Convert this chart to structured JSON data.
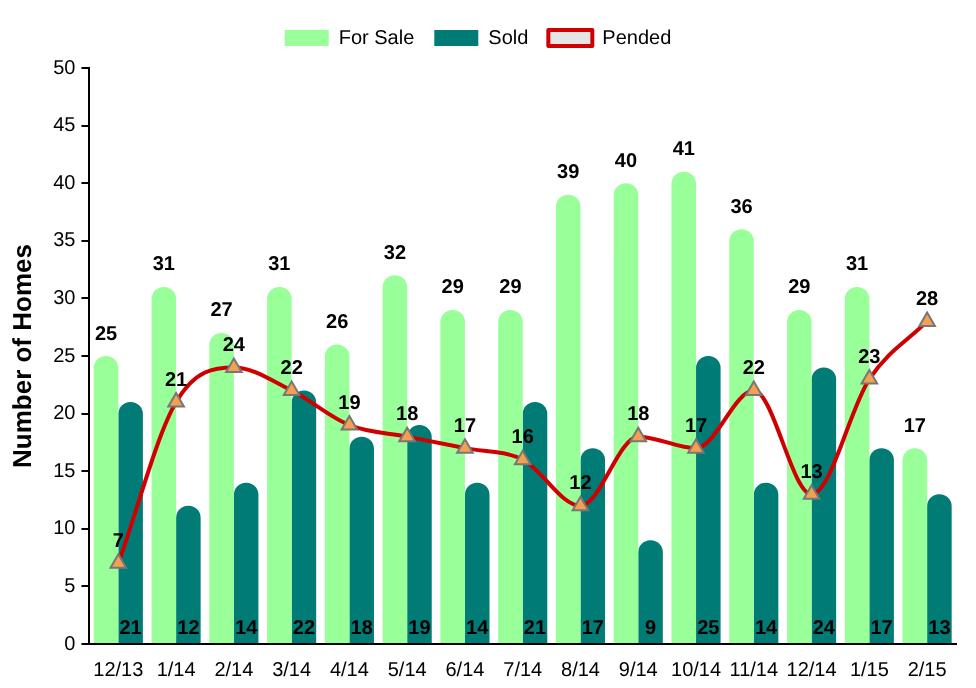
{
  "chart_data": {
    "type": "bar",
    "ylabel": "Number of Homes",
    "categories": [
      "12/13",
      "1/14",
      "2/14",
      "3/14",
      "4/14",
      "5/14",
      "6/14",
      "7/14",
      "8/14",
      "9/14",
      "10/14",
      "11/14",
      "12/14",
      "1/15",
      "2/15"
    ],
    "series": [
      {
        "name": "For Sale",
        "color": "#99ff99",
        "values": [
          25,
          31,
          27,
          31,
          26,
          32,
          29,
          29,
          39,
          40,
          41,
          36,
          29,
          31,
          17
        ]
      },
      {
        "name": "Sold",
        "color": "#007b76",
        "values": [
          21,
          12,
          14,
          22,
          18,
          19,
          14,
          21,
          17,
          9,
          25,
          14,
          24,
          17,
          13
        ]
      },
      {
        "name": "Pended",
        "type": "line",
        "color": "#d00000",
        "marker": "triangle",
        "values": [
          7,
          21,
          24,
          22,
          19,
          18,
          17,
          16,
          12,
          18,
          17,
          22,
          13,
          23,
          28
        ]
      }
    ],
    "ylim": [
      0,
      50
    ],
    "yticks": [
      0,
      5,
      10,
      15,
      20,
      25,
      30,
      35,
      40,
      45,
      50
    ],
    "grid": false,
    "legend": "top",
    "data_labels": true
  }
}
